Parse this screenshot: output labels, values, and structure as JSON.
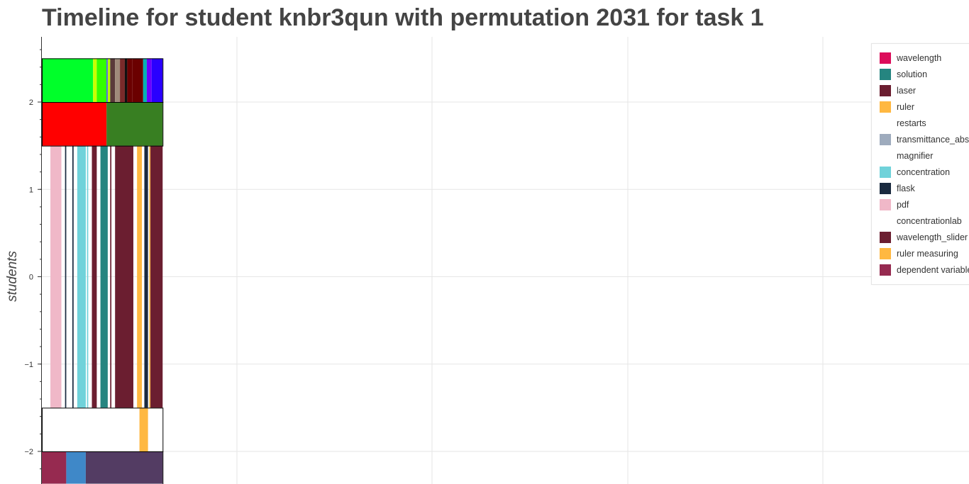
{
  "title": "Timeline for student knbr3qun with permutation 2031 for task 1",
  "chart_data": {
    "type": "bar",
    "title": "Timeline for student knbr3qun with permutation 2031 for task 1",
    "xlabel": "",
    "ylabel": "students",
    "yticks": [
      2,
      1,
      0,
      -1,
      -2
    ],
    "ytick_labels": [
      "2",
      "1",
      "0",
      "−1",
      "−2"
    ],
    "ylim": [
      -2.37,
      2.75
    ],
    "xlim": [
      0,
      7.9
    ],
    "grid": true,
    "legend_position": "top-right",
    "lanes": [
      {
        "y_range": [
          2.0,
          2.5
        ],
        "segments": [
          {
            "x0": 0.0,
            "x1": 0.42,
            "color": "#00ff2a"
          },
          {
            "x0": 0.42,
            "x1": 0.45,
            "color": "#c8ff00"
          },
          {
            "x0": 0.45,
            "x1": 0.53,
            "color": "#33ff00"
          },
          {
            "x0": 0.53,
            "x1": 0.54,
            "color": "#4a4aff"
          },
          {
            "x0": 0.54,
            "x1": 0.56,
            "color": "#b7ff00"
          },
          {
            "x0": 0.56,
            "x1": 0.6,
            "color": "#5a3a3a"
          },
          {
            "x0": 0.6,
            "x1": 0.64,
            "color": "#9f8a7a"
          },
          {
            "x0": 0.64,
            "x1": 0.68,
            "color": "#7a2a2a"
          },
          {
            "x0": 0.68,
            "x1": 0.7,
            "color": "#111111"
          },
          {
            "x0": 0.7,
            "x1": 0.74,
            "color": "#6b0000"
          },
          {
            "x0": 0.74,
            "x1": 0.83,
            "color": "#6b0000"
          },
          {
            "x0": 0.83,
            "x1": 0.86,
            "color": "#00b3b3"
          },
          {
            "x0": 0.86,
            "x1": 0.9,
            "color": "#6b00ff"
          },
          {
            "x0": 0.9,
            "x1": 0.99,
            "color": "#2a00ff"
          }
        ]
      },
      {
        "y_range": [
          1.5,
          2.0
        ],
        "segments": [
          {
            "x0": 0.0,
            "x1": 0.53,
            "color": "#ff0000"
          },
          {
            "x0": 0.53,
            "x1": 0.99,
            "color": "#387f22"
          }
        ]
      },
      {
        "y_range": [
          -1.5,
          1.5
        ],
        "segments": [
          {
            "x0": 0.07,
            "x1": 0.16,
            "color": "#f0b8c8"
          },
          {
            "x0": 0.19,
            "x1": 0.2,
            "color": "#1a2a3f"
          },
          {
            "x0": 0.25,
            "x1": 0.26,
            "color": "#1a2a3f"
          },
          {
            "x0": 0.29,
            "x1": 0.36,
            "color": "#70d2da"
          },
          {
            "x0": 0.37,
            "x1": 0.38,
            "color": "#70d2da"
          },
          {
            "x0": 0.41,
            "x1": 0.45,
            "color": "#6b1e30"
          },
          {
            "x0": 0.48,
            "x1": 0.54,
            "color": "#258580"
          },
          {
            "x0": 0.56,
            "x1": 0.57,
            "color": "#6b1e30"
          },
          {
            "x0": 0.6,
            "x1": 0.75,
            "color": "#6b1e30"
          },
          {
            "x0": 0.78,
            "x1": 0.82,
            "color": "#ffb841"
          },
          {
            "x0": 0.84,
            "x1": 0.87,
            "color": "#1a2a3f"
          },
          {
            "x0": 0.88,
            "x1": 0.89,
            "color": "#ffb841"
          },
          {
            "x0": 0.89,
            "x1": 0.99,
            "color": "#6b1e30"
          }
        ]
      },
      {
        "y_range": [
          -2.0,
          -1.5
        ],
        "segments": [
          {
            "x0": 0.8,
            "x1": 0.87,
            "color": "#ffb841"
          }
        ]
      },
      {
        "y_range": [
          -2.37,
          -2.0
        ],
        "segments": [
          {
            "x0": 0.0,
            "x1": 0.2,
            "color": "#962a50"
          },
          {
            "x0": 0.2,
            "x1": 0.36,
            "color": "#3f88c8"
          },
          {
            "x0": 0.36,
            "x1": 0.99,
            "color": "#533c63"
          }
        ]
      }
    ],
    "series": [
      {
        "name": "wavelength",
        "color": "#dc0d5a"
      },
      {
        "name": "solution",
        "color": "#258580"
      },
      {
        "name": "laser",
        "color": "#6b1e30"
      },
      {
        "name": "ruler",
        "color": "#ffb841"
      },
      {
        "name": "restarts",
        "color": "#ffffff"
      },
      {
        "name": "transmittance_absorbance",
        "color": "#9eabbd"
      },
      {
        "name": "magnifier",
        "color": "#ffffff"
      },
      {
        "name": "concentration",
        "color": "#70d2da"
      },
      {
        "name": "flask",
        "color": "#1a2a3f"
      },
      {
        "name": "pdf",
        "color": "#f0b8c8"
      },
      {
        "name": "concentrationlab",
        "color": "#ffffff"
      },
      {
        "name": "wavelength_slider",
        "color": "#6b1e30"
      },
      {
        "name": "ruler measuring",
        "color": "#ffb841"
      },
      {
        "name": "dependent variable",
        "color": "#962a50"
      }
    ]
  }
}
